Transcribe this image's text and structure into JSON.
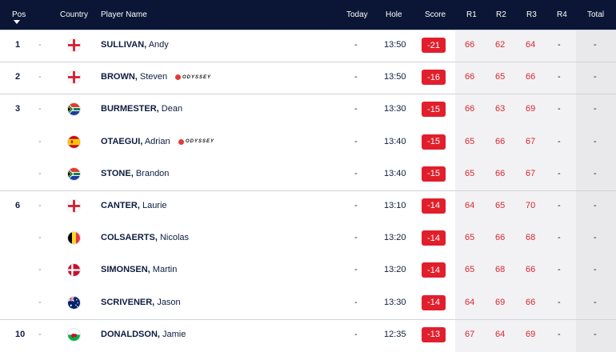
{
  "header": {
    "pos": "Pos",
    "country": "Country",
    "player_name": "Player Name",
    "today": "Today",
    "hole": "Hole",
    "score": "Score",
    "r1": "R1",
    "r2": "R2",
    "r3": "R3",
    "r4": "R4",
    "total": "Total"
  },
  "players": [
    {
      "pos": "1",
      "pos_move": "-",
      "country": "england",
      "surname": "SULLIVAN,",
      "first": "Andy",
      "sponsor": "",
      "today": "-",
      "hole": "13:50",
      "score": "-21",
      "r1": "66",
      "r2": "62",
      "r3": "64",
      "r4": "-",
      "total": "-"
    },
    {
      "pos": "2",
      "pos_move": "-",
      "country": "england",
      "surname": "BROWN,",
      "first": "Steven",
      "sponsor": "ODYSSEY",
      "today": "-",
      "hole": "13:50",
      "score": "-16",
      "r1": "66",
      "r2": "65",
      "r3": "66",
      "r4": "-",
      "total": "-"
    },
    {
      "pos": "3",
      "pos_move": "-",
      "country": "south-africa",
      "surname": "BURMESTER,",
      "first": "Dean",
      "sponsor": "",
      "today": "-",
      "hole": "13:30",
      "score": "-15",
      "r1": "66",
      "r2": "63",
      "r3": "69",
      "r4": "-",
      "total": "-"
    },
    {
      "pos": "",
      "pos_move": "-",
      "country": "spain",
      "surname": "OTAEGUI,",
      "first": "Adrian",
      "sponsor": "ODYSSEY",
      "today": "-",
      "hole": "13:40",
      "score": "-15",
      "r1": "65",
      "r2": "66",
      "r3": "67",
      "r4": "-",
      "total": "-"
    },
    {
      "pos": "",
      "pos_move": "-",
      "country": "south-africa",
      "surname": "STONE,",
      "first": "Brandon",
      "sponsor": "",
      "today": "-",
      "hole": "13:40",
      "score": "-15",
      "r1": "65",
      "r2": "66",
      "r3": "67",
      "r4": "-",
      "total": "-"
    },
    {
      "pos": "6",
      "pos_move": "-",
      "country": "england",
      "surname": "CANTER,",
      "first": "Laurie",
      "sponsor": "",
      "today": "-",
      "hole": "13:10",
      "score": "-14",
      "r1": "64",
      "r2": "65",
      "r3": "70",
      "r4": "-",
      "total": "-"
    },
    {
      "pos": "",
      "pos_move": "-",
      "country": "belgium",
      "surname": "COLSAERTS,",
      "first": "Nicolas",
      "sponsor": "",
      "today": "-",
      "hole": "13:20",
      "score": "-14",
      "r1": "65",
      "r2": "66",
      "r3": "68",
      "r4": "-",
      "total": "-"
    },
    {
      "pos": "",
      "pos_move": "-",
      "country": "denmark",
      "surname": "SIMONSEN,",
      "first": "Martin",
      "sponsor": "",
      "today": "-",
      "hole": "13:20",
      "score": "-14",
      "r1": "65",
      "r2": "68",
      "r3": "66",
      "r4": "-",
      "total": "-"
    },
    {
      "pos": "",
      "pos_move": "-",
      "country": "australia",
      "surname": "SCRIVENER,",
      "first": "Jason",
      "sponsor": "",
      "today": "-",
      "hole": "13:30",
      "score": "-14",
      "r1": "64",
      "r2": "69",
      "r3": "66",
      "r4": "-",
      "total": "-"
    },
    {
      "pos": "10",
      "pos_move": "-",
      "country": "wales",
      "surname": "DONALDSON,",
      "first": "Jamie",
      "sponsor": "",
      "today": "-",
      "hole": "12:35",
      "score": "-13",
      "r1": "67",
      "r2": "64",
      "r3": "69",
      "r4": "-",
      "total": "-"
    }
  ],
  "colors": {
    "header_bg": "#0b1636",
    "score_badge": "#e11f2c",
    "round_text": "#d7262f"
  }
}
